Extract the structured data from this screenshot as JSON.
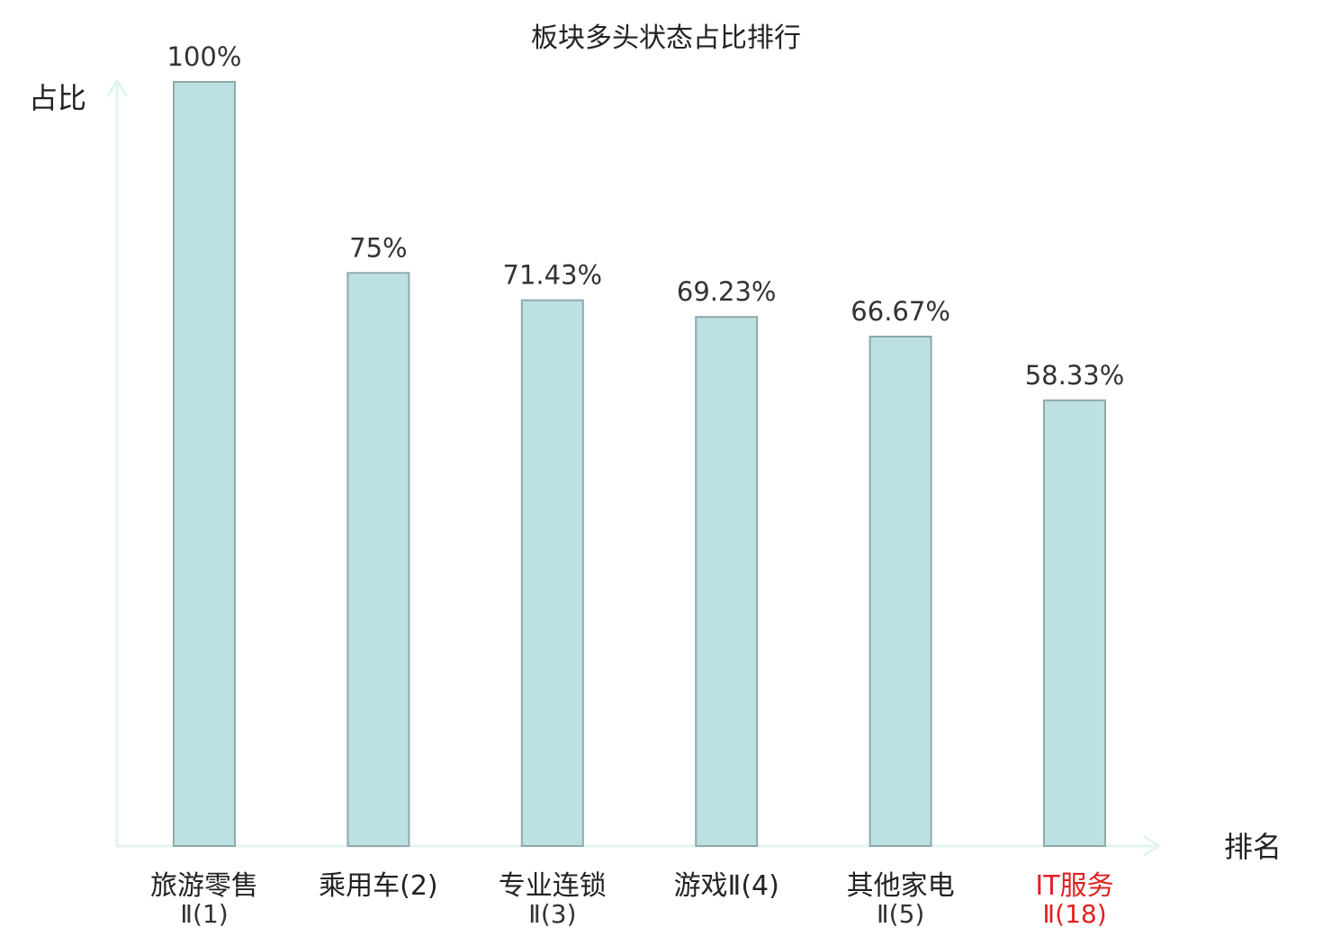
{
  "chart_data": {
    "type": "bar",
    "title": "板块多头状态占比排行",
    "xlabel": "排名",
    "ylabel": "占比",
    "ylim": [
      0,
      100
    ],
    "grid": false,
    "highlight_color": "#e02020",
    "bar_color": "#bde0e3",
    "categories": [
      {
        "line1": "旅游零售",
        "line2": "Ⅱ(1)",
        "highlight": false
      },
      {
        "line1": "乘用车(2)",
        "line2": "",
        "highlight": false
      },
      {
        "line1": "专业连锁",
        "line2": "Ⅱ(3)",
        "highlight": false
      },
      {
        "line1": "游戏Ⅱ(4)",
        "line2": "",
        "highlight": false
      },
      {
        "line1": "其他家电",
        "line2": "Ⅱ(5)",
        "highlight": false
      },
      {
        "line1": "IT服务",
        "line2": "Ⅱ(18)",
        "highlight": true
      }
    ],
    "values": [
      100,
      75,
      71.43,
      69.23,
      66.67,
      58.33
    ],
    "value_labels": [
      "100%",
      "75%",
      "71.43%",
      "69.23%",
      "66.67%",
      "58.33%"
    ]
  }
}
